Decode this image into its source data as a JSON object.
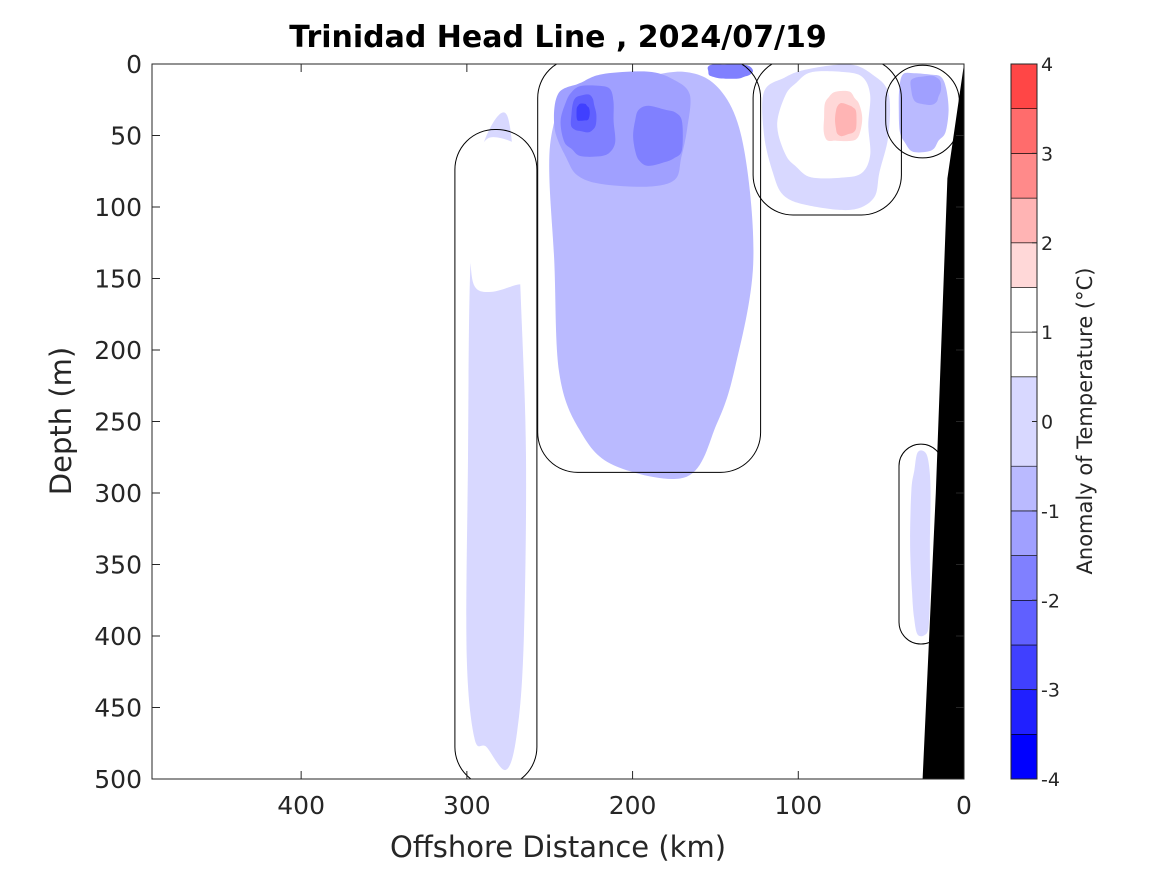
{
  "chart_data": {
    "type": "heatmap",
    "plot_kind": "filled-contour depth section",
    "title": "Trinidad Head Line , 2024/07/19",
    "xlabel": "Offshore Distance (km)",
    "ylabel": "Depth (m)",
    "xlim": [
      490,
      0
    ],
    "ylim": [
      0,
      500
    ],
    "x_reversed": true,
    "y_reversed": true,
    "x_ticks": [
      400,
      300,
      200,
      100,
      0
    ],
    "x_tick_labels": [
      "400",
      "300",
      "200",
      "100",
      "0"
    ],
    "y_ticks": [
      0,
      50,
      100,
      150,
      200,
      250,
      300,
      350,
      400,
      450,
      500
    ],
    "y_tick_labels": [
      "0",
      "50",
      "100",
      "150",
      "200",
      "250",
      "300",
      "350",
      "400",
      "450",
      "500"
    ],
    "colorbar": {
      "label": "Anomaly of Temperature (°C)",
      "range": [
        -4,
        4
      ],
      "ticks": [
        4,
        3,
        2,
        1,
        0,
        -1,
        -2,
        -3,
        -4
      ],
      "tick_labels": [
        "4",
        "3",
        "2",
        "1",
        "0",
        "-1",
        "-2",
        "-3",
        "-4"
      ],
      "levels": [
        -4,
        -3.5,
        -3,
        -2.5,
        -2,
        -1.5,
        -1,
        -0.5,
        0.5,
        1,
        1.5,
        2,
        2.5,
        3,
        3.5,
        4
      ],
      "colors": [
        "#0000ff",
        "#2020ff",
        "#4040ff",
        "#6060ff",
        "#8080ff",
        "#a0a0ff",
        "#babaff",
        "#d8d8ff",
        "#ffffff",
        "#ffffff",
        "#ffd8d8",
        "#ffb4b4",
        "#ff8a8a",
        "#ff6c6c",
        "#ff4646",
        "#ff0000"
      ]
    },
    "features": [
      {
        "kind": "warm",
        "x_range_km": [
          300,
          265
        ],
        "depth_range_m": [
          50,
          500
        ],
        "anomaly_c": 0.5
      },
      {
        "kind": "warm",
        "x_range_km": [
          300,
          255
        ],
        "depth_range_m": [
          55,
          160
        ],
        "anomaly_c": 1.0
      },
      {
        "kind": "warm",
        "x_range_km": [
          285,
          262
        ],
        "depth_range_m": [
          80,
          115
        ],
        "anomaly_c": 1.5
      },
      {
        "kind": "cold",
        "x_range_km": [
          250,
          130
        ],
        "depth_range_m": [
          0,
          280
        ],
        "anomaly_c": -0.5
      },
      {
        "kind": "cold",
        "x_range_km": [
          245,
          165
        ],
        "depth_range_m": [
          5,
          85
        ],
        "anomaly_c": -1.0
      },
      {
        "kind": "cold",
        "x_range_km": [
          242,
          210
        ],
        "depth_range_m": [
          15,
          65
        ],
        "anomaly_c": -1.5
      },
      {
        "kind": "cold",
        "x_range_km": [
          237,
          222
        ],
        "depth_range_m": [
          22,
          48
        ],
        "anomaly_c": -2.0
      },
      {
        "kind": "cold",
        "x_range_km": [
          234,
          226
        ],
        "depth_range_m": [
          28,
          40
        ],
        "anomaly_c": -2.5
      },
      {
        "kind": "cold",
        "x_range_km": [
          200,
          170
        ],
        "depth_range_m": [
          30,
          70
        ],
        "anomaly_c": -1.5
      },
      {
        "kind": "cold",
        "x_range_km": [
          155,
          128
        ],
        "depth_range_m": [
          0,
          10
        ],
        "anomaly_c": -1.5
      },
      {
        "kind": "warm",
        "x_range_km": [
          120,
          45
        ],
        "depth_range_m": [
          0,
          100
        ],
        "anomaly_c": 0.5
      },
      {
        "kind": "warm",
        "x_range_km": [
          110,
          55
        ],
        "depth_range_m": [
          5,
          80
        ],
        "anomaly_c": 1.0
      },
      {
        "kind": "warm",
        "x_range_km": [
          100,
          60
        ],
        "depth_range_m": [
          8,
          65
        ],
        "anomaly_c": 1.5
      },
      {
        "kind": "warm",
        "x_range_km": [
          85,
          62
        ],
        "depth_range_m": [
          20,
          55
        ],
        "anomaly_c": 2.0
      },
      {
        "kind": "warm",
        "x_range_km": [
          78,
          65
        ],
        "depth_range_m": [
          28,
          50
        ],
        "anomaly_c": 2.5
      },
      {
        "kind": "cold",
        "x_range_km": [
          40,
          10
        ],
        "depth_range_m": [
          5,
          60
        ],
        "anomaly_c": -0.5
      },
      {
        "kind": "cold",
        "x_range_km": [
          32,
          14
        ],
        "depth_range_m": [
          8,
          28
        ],
        "anomaly_c": -1.0
      },
      {
        "kind": "warm",
        "x_range_km": [
          32,
          20
        ],
        "depth_range_m": [
          270,
          400
        ],
        "anomaly_c": 0.5
      }
    ],
    "bathymetry": {
      "color": "#000000",
      "shelf_edge_depth_m": [
        [
          0,
          0
        ],
        [
          10,
          80
        ],
        [
          17,
          300
        ],
        [
          25,
          500
        ]
      ]
    },
    "data_extent_km": [
      0,
      300
    ],
    "zero_contour_color": "#000000"
  }
}
